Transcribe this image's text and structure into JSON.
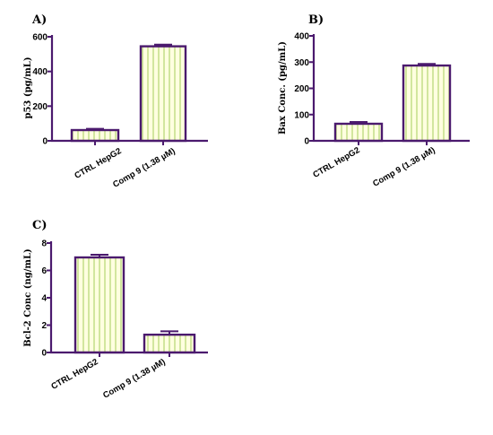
{
  "chart_data": [
    {
      "panel": "A)",
      "type": "bar",
      "categories": [
        "CTRL HepG2",
        "Comp 9 (1.38 µM)"
      ],
      "values": [
        62,
        545
      ],
      "errors": [
        7,
        10
      ],
      "ylabel": "p53 (pg/mL)",
      "ylim": [
        0,
        600
      ],
      "yticks": [
        0,
        200,
        400,
        600
      ],
      "grid": false,
      "colors": {
        "bar_fill": "#ffffe0",
        "bar_stripe": "#b9d97a",
        "bar_stroke": "#4b1a6e",
        "axis": "#4b1a6e"
      }
    },
    {
      "panel": "B)",
      "type": "bar",
      "categories": [
        "CTRL HepG2",
        "Comp 9 (1.38 µM)"
      ],
      "values": [
        65,
        287
      ],
      "errors": [
        7,
        6
      ],
      "ylabel": "Bax Conc. (pg/mL)",
      "ylim": [
        0,
        400
      ],
      "yticks": [
        0,
        100,
        200,
        300,
        400
      ],
      "grid": false,
      "colors": {
        "bar_fill": "#ffffe0",
        "bar_stripe": "#b9d97a",
        "bar_stroke": "#4b1a6e",
        "axis": "#4b1a6e"
      }
    },
    {
      "panel": "C)",
      "type": "bar",
      "categories": [
        "CTRL HepG2",
        "Comp 9 (1.38 µM)"
      ],
      "values": [
        6.95,
        1.3
      ],
      "errors": [
        0.2,
        0.25
      ],
      "ylabel": "Bcl-2 Conc (ng/mL)",
      "ylim": [
        0,
        8
      ],
      "yticks": [
        0,
        2,
        4,
        6,
        8
      ],
      "grid": false,
      "colors": {
        "bar_fill": "#ffffe0",
        "bar_stripe": "#b9d97a",
        "bar_stroke": "#4b1a6e",
        "axis": "#4b1a6e"
      }
    }
  ]
}
